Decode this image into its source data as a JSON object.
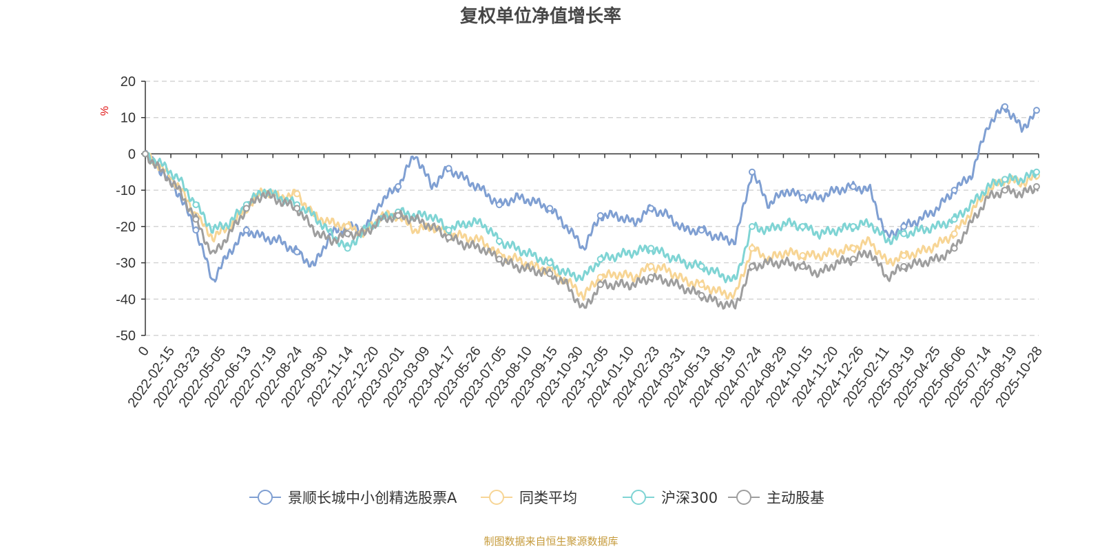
{
  "title": "复权单位净值增长率",
  "source": "制图数据来自恒生聚源数据库",
  "chart_data": {
    "type": "line",
    "title": "复权单位净值增长率",
    "ylabel": "%",
    "ylim": [
      -50,
      20
    ],
    "y_ticks": [
      20,
      10,
      0,
      -10,
      -20,
      -30,
      -40,
      -50
    ],
    "x_tick_labels": [
      "0",
      "2022-02-15",
      "2022-03-23",
      "2022-05-05",
      "2022-06-13",
      "2022-07-19",
      "2022-08-24",
      "2022-09-30",
      "2022-11-14",
      "2022-12-20",
      "2023-02-01",
      "2023-03-09",
      "2023-04-17",
      "2023-05-26",
      "2023-07-05",
      "2023-08-10",
      "2023-09-15",
      "2023-10-30",
      "2023-12-05",
      "2024-01-10",
      "2024-02-23",
      "2024-03-31",
      "2024-05-13",
      "2024-06-19",
      "2024-07-24",
      "2024-08-29",
      "2024-10-15",
      "2024-11-20",
      "2024-12-26",
      "2025-02-11",
      "2025-03-19",
      "2025-04-25",
      "2025-06-06",
      "2025-07-14",
      "2025-08-19",
      "2025-10-28"
    ],
    "grid": true,
    "legend_position": "bottom-center",
    "series": [
      {
        "name": "景顺长城中小创精选股票A",
        "color": "#7f9fd2",
        "values": [
          0,
          -5,
          -11,
          -21,
          -35,
          -27,
          -21,
          -23,
          -24,
          -27,
          -31,
          -22,
          -20,
          -21,
          -13,
          -9,
          0,
          -9,
          -4,
          -7,
          -10,
          -14,
          -12,
          -13,
          -15,
          -20,
          -26,
          -17,
          -17,
          -19,
          -15,
          -17,
          -21,
          -21,
          -23,
          -24,
          -5,
          -14,
          -10,
          -12,
          -12,
          -10,
          -9,
          -10,
          -23,
          -20,
          -18,
          -15,
          -10,
          -6,
          8,
          13,
          7,
          12
        ]
      },
      {
        "name": "同类平均",
        "color": "#f7d595",
        "values": [
          0,
          -4,
          -9,
          -17,
          -23,
          -20,
          -15,
          -10,
          -12,
          -11,
          -17,
          -19,
          -20,
          -22,
          -17,
          -17,
          -21,
          -20,
          -22,
          -23,
          -24,
          -28,
          -29,
          -31,
          -32,
          -35,
          -39,
          -34,
          -33,
          -34,
          -31,
          -32,
          -35,
          -36,
          -38,
          -39,
          -26,
          -29,
          -27,
          -28,
          -28,
          -27,
          -26,
          -24,
          -30,
          -28,
          -27,
          -25,
          -22,
          -16,
          -10,
          -7,
          -8,
          -6
        ]
      },
      {
        "name": "沪深300",
        "color": "#7fd4d4",
        "values": [
          0,
          -3,
          -7,
          -14,
          -21,
          -19,
          -14,
          -10,
          -12,
          -14,
          -17,
          -22,
          -26,
          -21,
          -18,
          -16,
          -17,
          -17,
          -21,
          -19,
          -19,
          -24,
          -26,
          -28,
          -30,
          -33,
          -34,
          -29,
          -28,
          -27,
          -26,
          -28,
          -30,
          -31,
          -33,
          -35,
          -20,
          -21,
          -19,
          -20,
          -22,
          -21,
          -20,
          -19,
          -24,
          -22,
          -21,
          -20,
          -18,
          -14,
          -9,
          -7,
          -7,
          -5
        ]
      },
      {
        "name": "主动股基",
        "color": "#9e9e9e",
        "values": [
          0,
          -5,
          -10,
          -18,
          -28,
          -22,
          -15,
          -11,
          -13,
          -15,
          -21,
          -24,
          -22,
          -22,
          -18,
          -17,
          -18,
          -20,
          -23,
          -25,
          -26,
          -29,
          -31,
          -32,
          -33,
          -36,
          -43,
          -36,
          -36,
          -36,
          -34,
          -35,
          -37,
          -39,
          -41,
          -42,
          -31,
          -30,
          -30,
          -31,
          -33,
          -30,
          -29,
          -27,
          -34,
          -31,
          -30,
          -29,
          -26,
          -19,
          -12,
          -10,
          -11,
          -9
        ]
      }
    ]
  }
}
